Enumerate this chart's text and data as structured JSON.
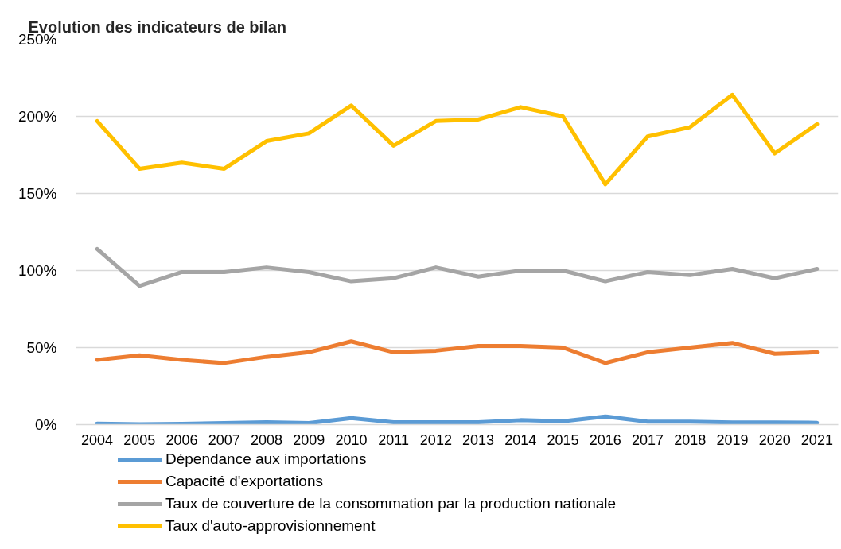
{
  "chart_data": {
    "type": "line",
    "title": "Evolution des indicateurs de bilan",
    "categories": [
      "2004",
      "2005",
      "2006",
      "2007",
      "2008",
      "2009",
      "2010",
      "2011",
      "2012",
      "2013",
      "2014",
      "2015",
      "2016",
      "2017",
      "2018",
      "2019",
      "2020",
      "2021"
    ],
    "series": [
      {
        "name": "Dépendance aux importations",
        "color": "#5b9bd5",
        "values": [
          0.7,
          0.3,
          0.5,
          1,
          1.5,
          1,
          4.3,
          1.5,
          1.5,
          1.5,
          2.9,
          2.2,
          5.3,
          1.9,
          1.9,
          1.4,
          1.4,
          1.2
        ]
      },
      {
        "name": "Capacité d'exportations",
        "color": "#ed7d31",
        "values": [
          42,
          45,
          42,
          40,
          44,
          47,
          54,
          47,
          48,
          51,
          51,
          50,
          40,
          47,
          50,
          53,
          46,
          47
        ]
      },
      {
        "name": "Taux de couverture de la consommation par la production nationale",
        "color": "#a5a5a5",
        "values": [
          114,
          90,
          99,
          99,
          102,
          99,
          93,
          95,
          102,
          96,
          100,
          100,
          93,
          99,
          97,
          101,
          95,
          101
        ]
      },
      {
        "name": "Taux d'auto-approvisionnement",
        "color": "#ffc000",
        "values": [
          197,
          166,
          170,
          166,
          184,
          189,
          207,
          181,
          197,
          198,
          206,
          200,
          156,
          187,
          193,
          214,
          176,
          195
        ]
      }
    ],
    "ylim": [
      0,
      250
    ],
    "yticks": [
      {
        "value": 0,
        "label": "0%"
      },
      {
        "value": 50,
        "label": "50%"
      },
      {
        "value": 100,
        "label": "100%"
      },
      {
        "value": 150,
        "label": "150%"
      },
      {
        "value": 200,
        "label": "200%"
      },
      {
        "value": 250,
        "label": "250%"
      }
    ],
    "grid": "y",
    "legend": "bottom",
    "line_style": "solid"
  }
}
